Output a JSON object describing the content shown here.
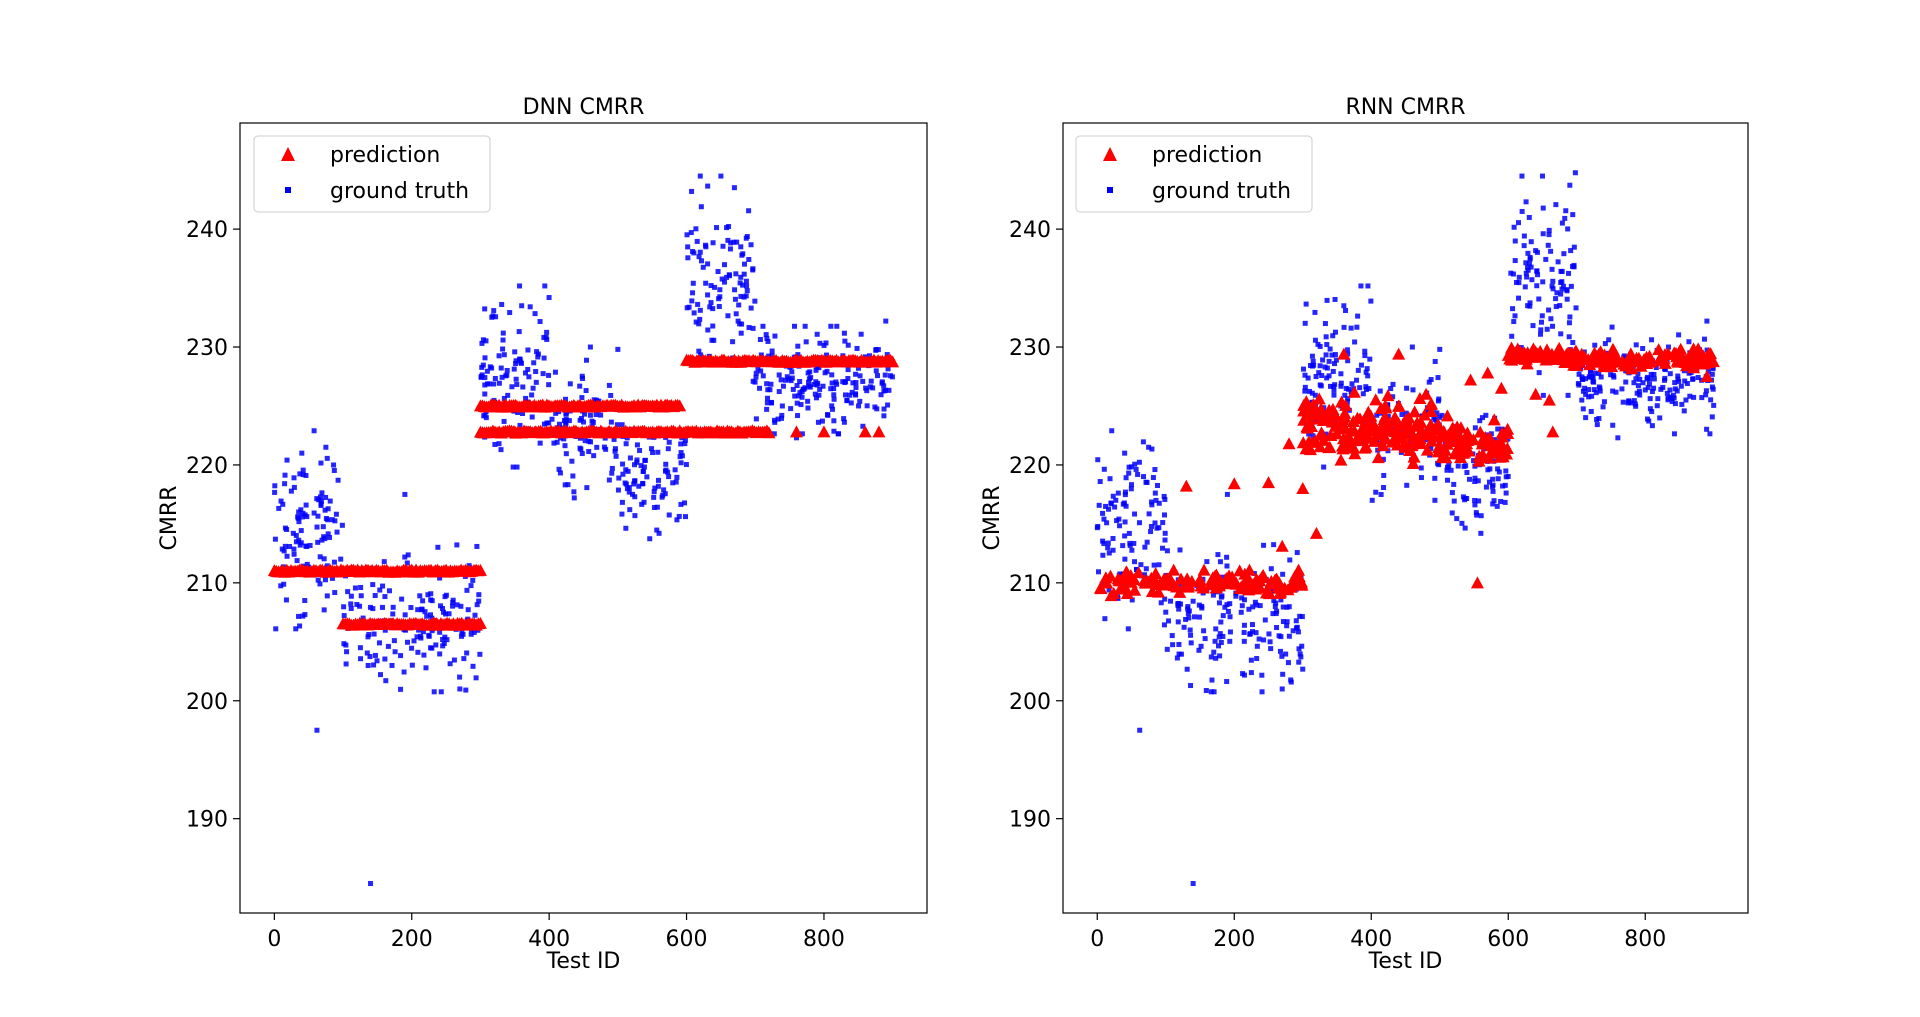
{
  "chart_data": [
    {
      "type": "scatter",
      "title": "DNN CMRR",
      "xlabel": "Test ID",
      "ylabel": "CMRR",
      "xlim": [
        -50,
        950
      ],
      "ylim": [
        182,
        249
      ],
      "xticks": [
        0,
        200,
        400,
        600,
        800
      ],
      "yticks": [
        190,
        200,
        210,
        220,
        230,
        240
      ],
      "legend": "top-left",
      "grid": false,
      "series": [
        {
          "name": "prediction",
          "marker": "triangle",
          "color": "#ff0000",
          "segments": [
            {
              "x0": 0,
              "x1": 200,
              "y": 211.0
            },
            {
              "x0": 100,
              "x1": 300,
              "y": 206.5
            },
            {
              "x0": 200,
              "x1": 300,
              "y": 211.0
            },
            {
              "x0": 300,
              "x1": 590,
              "y": 225.0
            },
            {
              "x0": 300,
              "x1": 720,
              "y": 222.8
            },
            {
              "x0": 600,
              "x1": 900,
              "y": 228.8
            }
          ],
          "outliers": [
            {
              "x": 350,
              "y": 222.8
            },
            {
              "x": 380,
              "y": 222.8
            },
            {
              "x": 760,
              "y": 222.8
            },
            {
              "x": 800,
              "y": 222.8
            },
            {
              "x": 860,
              "y": 222.8
            },
            {
              "x": 880,
              "y": 222.8
            }
          ]
        },
        {
          "name": "ground truth",
          "marker": "square",
          "color": "#0000ff",
          "clusters": [
            {
              "x0": 0,
              "x1": 100,
              "yc": 214.5,
              "spread": 3.5,
              "n": 110
            },
            {
              "x0": 100,
              "x1": 300,
              "yc": 207.0,
              "spread": 2.6,
              "n": 180
            },
            {
              "x0": 300,
              "x1": 400,
              "yc": 227.5,
              "spread": 3.2,
              "n": 110
            },
            {
              "x0": 400,
              "x1": 500,
              "yc": 223.0,
              "spread": 2.5,
              "n": 95
            },
            {
              "x0": 500,
              "x1": 600,
              "yc": 219.5,
              "spread": 2.4,
              "n": 95
            },
            {
              "x0": 600,
              "x1": 700,
              "yc": 235.5,
              "spread": 4.0,
              "n": 110
            },
            {
              "x0": 700,
              "x1": 900,
              "yc": 227.2,
              "spread": 1.9,
              "n": 200
            }
          ],
          "extras": [
            {
              "x": 62,
              "y": 197.5
            },
            {
              "x": 140,
              "y": 184.5
            },
            {
              "x": 190,
              "y": 217.5
            },
            {
              "x": 40,
              "y": 221.0
            },
            {
              "x": 75,
              "y": 221.5
            },
            {
              "x": 160,
              "y": 211.8
            },
            {
              "x": 360,
              "y": 233.5
            },
            {
              "x": 460,
              "y": 230.0
            },
            {
              "x": 500,
              "y": 229.8
            },
            {
              "x": 620,
              "y": 244.5
            },
            {
              "x": 650,
              "y": 244.5
            },
            {
              "x": 560,
              "y": 214.2
            },
            {
              "x": 270,
              "y": 201.0
            },
            {
              "x": 890,
              "y": 232.2
            },
            {
              "x": 760,
              "y": 222.3
            }
          ]
        }
      ]
    },
    {
      "type": "scatter",
      "title": "RNN CMRR",
      "xlabel": "Test ID",
      "ylabel": "CMRR",
      "xlim": [
        -50,
        950
      ],
      "ylim": [
        182,
        249
      ],
      "xticks": [
        0,
        200,
        400,
        600,
        800
      ],
      "yticks": [
        190,
        200,
        210,
        220,
        230,
        240
      ],
      "legend": "top-left",
      "grid": false,
      "series": [
        {
          "name": "prediction",
          "marker": "triangle",
          "color": "#ff0000",
          "clusters": [
            {
              "x0": 0,
              "x1": 300,
              "yc": 210.0,
              "spread": 0.45,
              "n": 130
            },
            {
              "x0": 300,
              "x1": 400,
              "yc": 224.0,
              "spread": 0.9,
              "n": 60
            },
            {
              "x0": 300,
              "x1": 400,
              "yc": 221.8,
              "spread": 0.6,
              "n": 30
            },
            {
              "x0": 400,
              "x1": 500,
              "yc": 223.0,
              "spread": 1.2,
              "n": 80
            },
            {
              "x0": 500,
              "x1": 600,
              "yc": 222.0,
              "spread": 0.9,
              "n": 70
            },
            {
              "x0": 600,
              "x1": 700,
              "yc": 229.2,
              "spread": 0.35,
              "n": 70
            },
            {
              "x0": 700,
              "x1": 900,
              "yc": 229.0,
              "spread": 0.35,
              "n": 110
            }
          ],
          "extras": [
            {
              "x": 130,
              "y": 218.2
            },
            {
              "x": 200,
              "y": 218.4
            },
            {
              "x": 250,
              "y": 218.5
            },
            {
              "x": 300,
              "y": 218.0
            },
            {
              "x": 320,
              "y": 214.2
            },
            {
              "x": 270,
              "y": 213.1
            },
            {
              "x": 280,
              "y": 221.8
            },
            {
              "x": 360,
              "y": 229.4
            },
            {
              "x": 440,
              "y": 229.4
            },
            {
              "x": 555,
              "y": 210.0
            },
            {
              "x": 640,
              "y": 226.0
            },
            {
              "x": 660,
              "y": 225.5
            },
            {
              "x": 665,
              "y": 222.8
            },
            {
              "x": 890,
              "y": 227.5
            },
            {
              "x": 545,
              "y": 227.2
            },
            {
              "x": 570,
              "y": 227.8
            },
            {
              "x": 590,
              "y": 226.5
            },
            {
              "x": 480,
              "y": 226.0
            }
          ]
        },
        {
          "name": "ground truth",
          "marker": "square",
          "color": "#0000ff",
          "clusters": [
            {
              "x0": 0,
              "x1": 100,
              "yc": 214.5,
              "spread": 3.5,
              "n": 110
            },
            {
              "x0": 100,
              "x1": 300,
              "yc": 207.0,
              "spread": 2.6,
              "n": 180
            },
            {
              "x0": 300,
              "x1": 400,
              "yc": 227.5,
              "spread": 3.2,
              "n": 110
            },
            {
              "x0": 400,
              "x1": 500,
              "yc": 223.0,
              "spread": 2.5,
              "n": 95
            },
            {
              "x0": 500,
              "x1": 600,
              "yc": 219.5,
              "spread": 2.4,
              "n": 95
            },
            {
              "x0": 600,
              "x1": 700,
              "yc": 235.5,
              "spread": 4.0,
              "n": 110
            },
            {
              "x0": 700,
              "x1": 900,
              "yc": 227.2,
              "spread": 1.9,
              "n": 200
            }
          ],
          "extras": [
            {
              "x": 62,
              "y": 197.5
            },
            {
              "x": 140,
              "y": 184.5
            },
            {
              "x": 190,
              "y": 217.5
            },
            {
              "x": 40,
              "y": 221.0
            },
            {
              "x": 75,
              "y": 221.5
            },
            {
              "x": 160,
              "y": 211.8
            },
            {
              "x": 360,
              "y": 233.5
            },
            {
              "x": 460,
              "y": 230.0
            },
            {
              "x": 500,
              "y": 229.8
            },
            {
              "x": 620,
              "y": 244.5
            },
            {
              "x": 650,
              "y": 244.5
            },
            {
              "x": 560,
              "y": 214.2
            },
            {
              "x": 270,
              "y": 201.0
            },
            {
              "x": 890,
              "y": 232.2
            },
            {
              "x": 760,
              "y": 222.3
            }
          ]
        }
      ]
    }
  ]
}
